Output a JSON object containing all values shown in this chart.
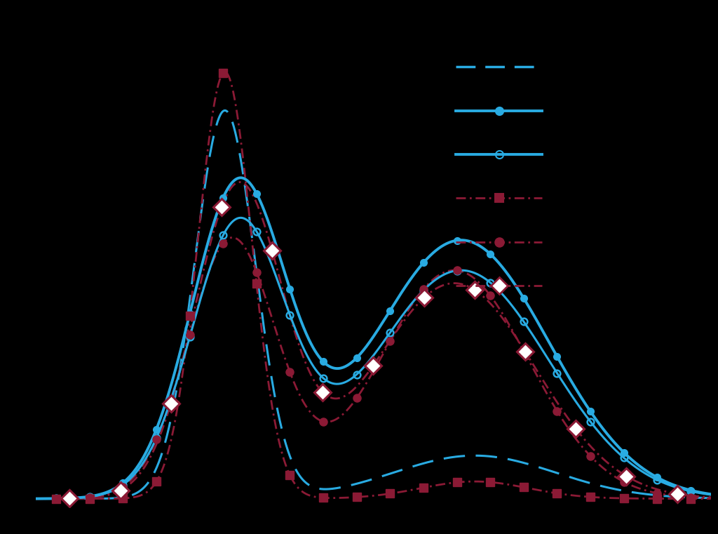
{
  "background_color": "#000000",
  "sky_blue": "#29ABE2",
  "dark_red": "#8B1A35",
  "figsize": [
    10.24,
    7.61
  ],
  "dpi": 100
}
